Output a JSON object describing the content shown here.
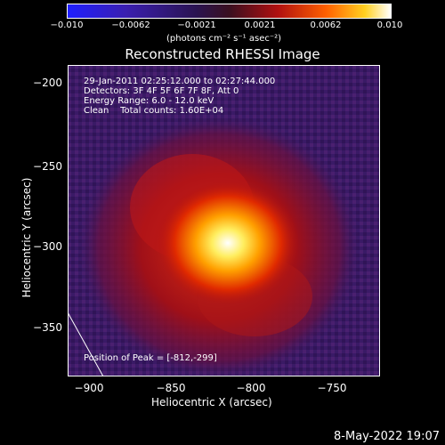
{
  "colorbar": {
    "ticks": [
      "−0.010",
      "−0.0062",
      "−0.0021",
      "0.0021",
      "0.0062",
      "0.010"
    ],
    "units": "(photons cm⁻² s⁻¹ asec⁻²)"
  },
  "title": "Reconstructed RHESSI Image",
  "info": {
    "time": "29-Jan-2011 02:25:12.000 to 02:27:44.000",
    "detectors": "Detectors: 3F 4F 5F 6F 7F 8F, Att 0",
    "energy": "Energy Range: 6.0 - 12.0 keV",
    "clean": "Clean    Total counts: 1.60E+04"
  },
  "peak_label": "Position of Peak = [-812,-299]",
  "axes": {
    "xlabel": "Heliocentric X (arcsec)",
    "ylabel": "Heliocentric Y (arcsec)",
    "xticks": [
      "−900",
      "−850",
      "−800",
      "−750"
    ],
    "yticks": [
      "−200",
      "−250",
      "−300",
      "−350"
    ]
  },
  "footer": "8-May-2022 19:07",
  "chart_data": {
    "type": "heatmap",
    "title": "Reconstructed RHESSI Image",
    "xlabel": "Heliocentric X (arcsec)",
    "ylabel": "Heliocentric Y (arcsec)",
    "xlim": [
      -912,
      -718
    ],
    "ylim": [
      -382,
      -188
    ],
    "zlim": [
      -0.01,
      0.01
    ],
    "colormap": "purple-red-yellow-white",
    "peak": [
      -812,
      -299
    ]
  }
}
